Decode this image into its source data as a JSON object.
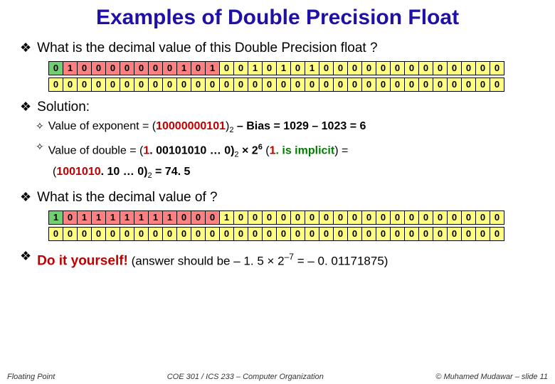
{
  "title": "Examples of Double Precision Float",
  "title_fontsize": 30,
  "q1": "What is the decimal value of this Double Precision float ?",
  "bits1_row1": {
    "sign": [
      "0"
    ],
    "exp": [
      "1",
      "0",
      "0",
      "0",
      "0",
      "0",
      "0",
      "0",
      "1",
      "0",
      "1"
    ],
    "frac": [
      "0",
      "0",
      "1",
      "0",
      "1",
      "0",
      "1",
      "0",
      "0",
      "0",
      "0",
      "0",
      "0",
      "0",
      "0",
      "0",
      "0",
      "0",
      "0",
      "0"
    ]
  },
  "bits1_row2_frac": [
    "0",
    "0",
    "0",
    "0",
    "0",
    "0",
    "0",
    "0",
    "0",
    "0",
    "0",
    "0",
    "0",
    "0",
    "0",
    "0",
    "0",
    "0",
    "0",
    "0",
    "0",
    "0",
    "0",
    "0",
    "0",
    "0",
    "0",
    "0",
    "0",
    "0",
    "0",
    "0"
  ],
  "solution_label": "Solution:",
  "sol_line1_a": "Value of exponent = (",
  "sol_line1_b": "10000000101",
  "sol_line1_c": ")",
  "sol_line1_d": " – Bias = 1029 – 1023 = 6",
  "sol_line2_a": "Value of double = (",
  "sol_line2_b": "1",
  "sol_line2_c": ". 00101010 … 0)",
  "sol_line2_d": " × 2",
  "sol_line2_e": " (",
  "sol_line2_f": "1",
  "sol_line2_g": ". is implicit",
  "sol_line2_h": ") =",
  "sol_line3_a": "(",
  "sol_line3_b": "1001010",
  "sol_line3_c": ". 10 … 0)",
  "sol_line3_d": " = 74. 5",
  "q2": "What is the decimal value of ?",
  "bits2_row1": {
    "sign": [
      "1"
    ],
    "exp": [
      "0",
      "1",
      "1",
      "1",
      "1",
      "1",
      "1",
      "1",
      "0",
      "0",
      "0"
    ],
    "frac": [
      "1",
      "0",
      "0",
      "0",
      "0",
      "0",
      "0",
      "0",
      "0",
      "0",
      "0",
      "0",
      "0",
      "0",
      "0",
      "0",
      "0",
      "0",
      "0",
      "0"
    ]
  },
  "bits2_row2_frac": [
    "0",
    "0",
    "0",
    "0",
    "0",
    "0",
    "0",
    "0",
    "0",
    "0",
    "0",
    "0",
    "0",
    "0",
    "0",
    "0",
    "0",
    "0",
    "0",
    "0",
    "0",
    "0",
    "0",
    "0",
    "0",
    "0",
    "0",
    "0",
    "0",
    "0",
    "0",
    "0"
  ],
  "diy_label": "Do it yourself!",
  "diy_tail": " (answer should be – 1. 5 × 2",
  "diy_exp": "–7",
  "diy_end": " = – 0. 01171875)",
  "footer_left": "Floating Point",
  "footer_center": "COE 301 / ICS 233 – Computer Organization",
  "footer_right": "© Muhamed Mudawar – slide 11",
  "colors": {
    "sign": "#70d070",
    "exp": "#ff8080",
    "frac": "#ffff80",
    "title": "#1f10a8",
    "red": "#c00000",
    "green": "#008000"
  }
}
